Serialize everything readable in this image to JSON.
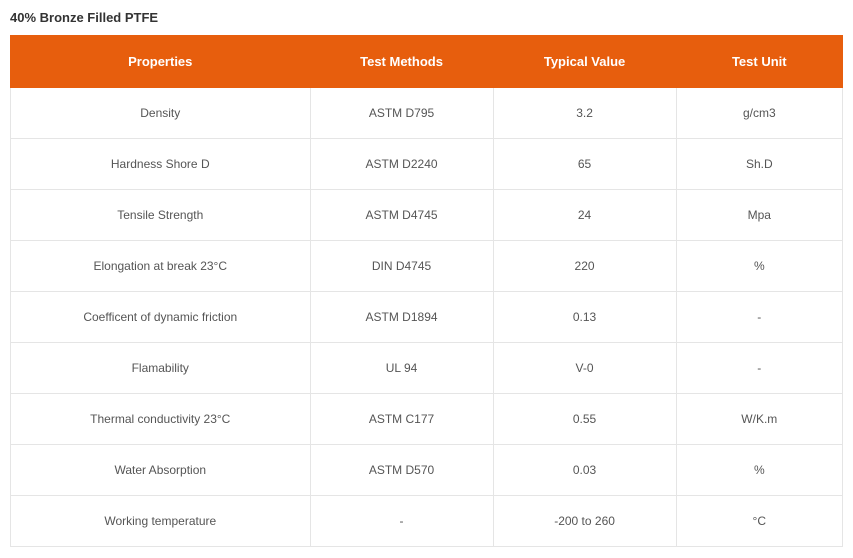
{
  "title": "40% Bronze Filled PTFE",
  "table": {
    "header_bg": "#e75e0d",
    "header_fg": "#ffffff",
    "cell_border": "#e5e5e5",
    "cell_fg": "#555555",
    "columns": [
      "Properties",
      "Test Methods",
      "Typical Value",
      "Test Unit"
    ],
    "rows": [
      [
        "Density",
        "ASTM D795",
        "3.2",
        "g/cm3"
      ],
      [
        "Hardness Shore D",
        "ASTM D2240",
        "65",
        "Sh.D"
      ],
      [
        "Tensile Strength",
        "ASTM D4745",
        "24",
        "Mpa"
      ],
      [
        "Elongation at break 23°C",
        "DIN D4745",
        "220",
        "%"
      ],
      [
        "Coefficent of dynamic friction",
        "ASTM D1894",
        "0.13",
        "-"
      ],
      [
        "Flamability",
        "UL 94",
        "V-0",
        "-"
      ],
      [
        "Thermal conductivity 23°C",
        "ASTM C177",
        "0.55",
        "W/K.m"
      ],
      [
        "Water Absorption",
        "ASTM D570",
        "0.03",
        "%"
      ],
      [
        "Working temperature",
        "-",
        "-200 to 260",
        "°C"
      ]
    ]
  }
}
